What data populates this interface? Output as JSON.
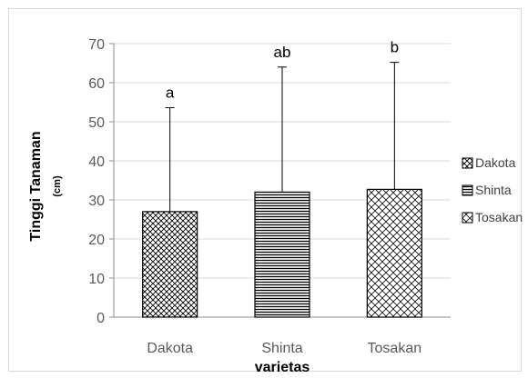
{
  "chart_data": {
    "type": "bar",
    "categories": [
      "Dakota",
      "Shinta",
      "Tosakan"
    ],
    "series": [
      {
        "name": "Dakota",
        "values": [
          27,
          null,
          null
        ]
      },
      {
        "name": "Shinta",
        "values": [
          null,
          32,
          null
        ]
      },
      {
        "name": "Tosakan",
        "values": [
          null,
          null,
          32.7
        ]
      }
    ],
    "values": [
      27,
      32,
      32.7
    ],
    "error_upper": [
      53.6,
      64,
      65.2
    ],
    "significance_labels": [
      "a",
      "ab",
      "b"
    ],
    "patterns": [
      "diagonal-grid",
      "horizontal-lines",
      "diamond-grid"
    ],
    "title": "",
    "xlabel": "varietas",
    "ylabel": "Tinggi Tanaman",
    "ylabel_unit": "(cm)",
    "ylim": [
      0,
      70
    ],
    "yticks": [
      0,
      10,
      20,
      30,
      40,
      50,
      60,
      70
    ],
    "grid": true,
    "legend_position": "right",
    "colors": {
      "bar_stroke": "#000000",
      "grid": "#d9d9d9",
      "axis": "#8c8c8c"
    }
  }
}
